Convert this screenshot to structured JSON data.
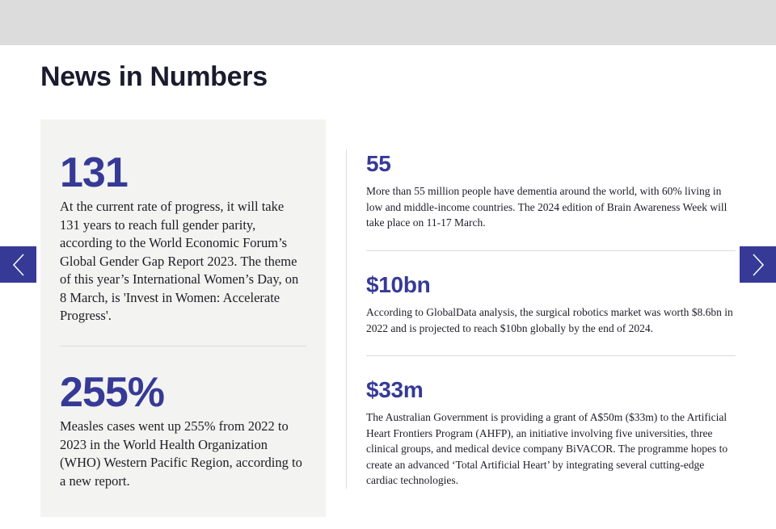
{
  "page": {
    "title": "News in Numbers"
  },
  "colors": {
    "accent": "#363a96",
    "panel": "#f3f3f1",
    "topbar": "#dcdcdc"
  },
  "left_panel": [
    {
      "number": "131",
      "text": "At the current rate of progress, it will take 131 years to reach full gender parity, according to the World Economic Forum’s Global Gender Gap Report 2023. The theme of this year’s International Women’s Day, on 8 March, is 'Invest in Women: Accelerate Progress'."
    },
    {
      "number": "255%",
      "text": "Measles cases went up 255% from 2022 to 2023 in the World Health Organization (WHO) Western Pacific Region, according to a new report."
    }
  ],
  "right_column": [
    {
      "number": "55",
      "text": "More than 55 million people have dementia around the world, with 60% living in low and middle-income countries. The 2024 edition of Brain Awareness Week will take place on 11-17 March."
    },
    {
      "number": "$10bn",
      "text": "According to GlobalData analysis, the surgical robotics market was worth $8.6bn in 2022 and is projected to reach $10bn globally by the end of 2024."
    },
    {
      "number": "$33m",
      "text": "The Australian Government is providing a grant of A$50m ($33m) to the Artificial Heart Frontiers Program (AHFP), an initiative involving five universities, three clinical groups, and medical device company BiVACOR. The programme hopes to create an advanced ‘Total Artificial Heart’ by integrating several cutting-edge cardiac technologies."
    }
  ],
  "carousel": {
    "prev_icon": "chevron-left-icon",
    "next_icon": "chevron-right-icon"
  }
}
